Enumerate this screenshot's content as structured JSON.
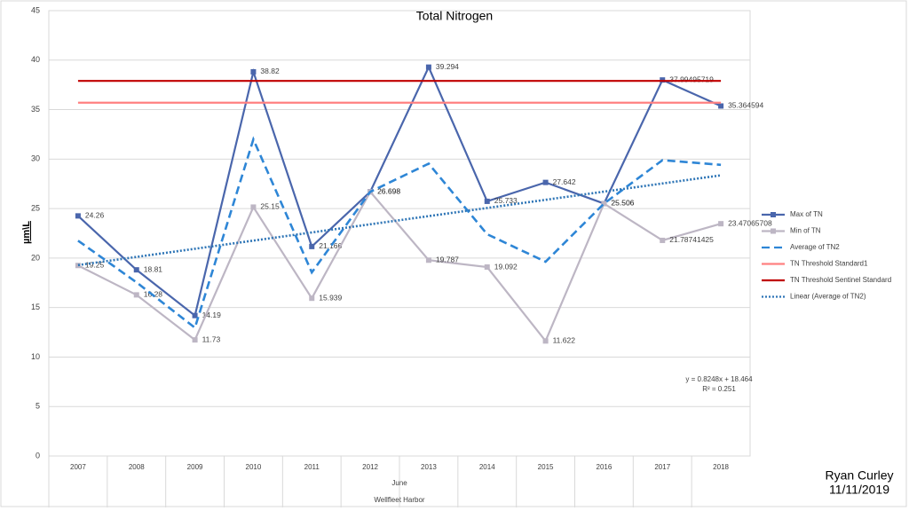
{
  "chart_data": {
    "type": "line",
    "title": "Total Nitrogen",
    "y_label": "µm\\L",
    "x_group_labels": [
      "June",
      "Wellfleet Harbor"
    ],
    "categories": [
      "2007",
      "2008",
      "2009",
      "2010",
      "2011",
      "2012",
      "2013",
      "2014",
      "2015",
      "2016",
      "2017",
      "2018"
    ],
    "ylim": [
      0,
      45
    ],
    "yticks": [
      0,
      5,
      10,
      15,
      20,
      25,
      30,
      35,
      40,
      45
    ],
    "grid": true,
    "legend": "right",
    "series": [
      {
        "name": "Max of TN",
        "color": "#4a66ac",
        "dash": "solid",
        "marker": "square",
        "data_labels": true,
        "values": [
          24.26,
          18.81,
          14.19,
          38.82,
          21.166,
          26.698,
          39.294,
          25.733,
          27.642,
          25.506,
          37.99495719,
          35.364594
        ]
      },
      {
        "name": "Min of TN",
        "color": "#bdb6c4",
        "dash": "solid",
        "marker": "square",
        "data_labels": true,
        "values": [
          19.25,
          16.28,
          11.73,
          25.15,
          15.939,
          26.698,
          19.787,
          19.092,
          11.622,
          25.506,
          21.78741425,
          23.47065708
        ]
      },
      {
        "name": "Average of TN2",
        "color": "#2e86d6",
        "dash": "dashed",
        "marker": "none",
        "data_labels": false,
        "values": [
          21.76,
          17.55,
          12.96,
          31.99,
          18.55,
          26.698,
          29.54,
          22.41,
          19.63,
          25.506,
          29.89,
          29.42
        ]
      },
      {
        "name": "TN Threshold Standard1",
        "color": "#ff8080",
        "dash": "solid",
        "marker": "none",
        "data_labels": false,
        "values": [
          35.7,
          35.7,
          35.7,
          35.7,
          35.7,
          35.7,
          35.7,
          35.7,
          35.7,
          35.7,
          35.7,
          35.7
        ]
      },
      {
        "name": "TN Threshold Sentinel Standard",
        "color": "#c00000",
        "dash": "solid",
        "marker": "none",
        "data_labels": false,
        "values": [
          37.9,
          37.9,
          37.9,
          37.9,
          37.9,
          37.9,
          37.9,
          37.9,
          37.9,
          37.9,
          37.9,
          37.9
        ]
      },
      {
        "name": "Linear (Average of TN2)",
        "color": "#2e75b6",
        "dash": "dotted",
        "marker": "none",
        "data_labels": false,
        "values": [
          19.289,
          20.114,
          20.938,
          21.763,
          22.588,
          23.413,
          24.238,
          25.062,
          25.887,
          26.712,
          27.537,
          28.362
        ]
      }
    ],
    "annotations": [
      "y = 0.8248x + 18.464",
      "R² = 0.251"
    ]
  },
  "author": "Ryan Curley",
  "date": "11/11/2019"
}
